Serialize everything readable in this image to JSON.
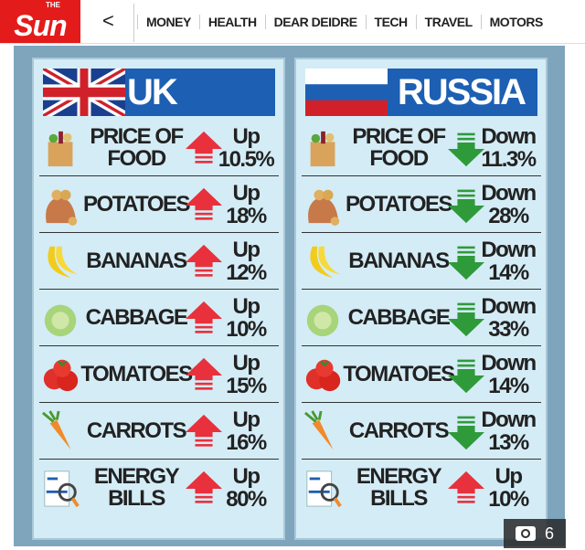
{
  "header": {
    "logo": "Sun",
    "logo_small": "THE",
    "back": "<",
    "nav": [
      "MONEY",
      "HEALTH",
      "DEAR DEIDRE",
      "TECH",
      "TRAVEL",
      "MOTORS"
    ]
  },
  "colors": {
    "up": "#e8313c",
    "down": "#2f9a3a",
    "title_bar": "#1d5fb3",
    "brand": "#e41b1b"
  },
  "panels": [
    {
      "title": "UK",
      "rows": [
        {
          "label": "PRICE OF FOOD",
          "dir": "Up",
          "value": "10.5%",
          "icon": "grocery-bag-icon"
        },
        {
          "label": "POTATOES",
          "dir": "Up",
          "value": "18%",
          "icon": "potato-sack-icon"
        },
        {
          "label": "BANANAS",
          "dir": "Up",
          "value": "12%",
          "icon": "banana-icon"
        },
        {
          "label": "CABBAGE",
          "dir": "Up",
          "value": "10%",
          "icon": "cabbage-icon"
        },
        {
          "label": "TOMATOES",
          "dir": "Up",
          "value": "15%",
          "icon": "tomato-icon"
        },
        {
          "label": "CARROTS",
          "dir": "Up",
          "value": "16%",
          "icon": "carrot-icon"
        },
        {
          "label": "ENERGY BILLS",
          "dir": "Up",
          "value": "80%",
          "icon": "bill-icon"
        }
      ]
    },
    {
      "title": "RUSSIA",
      "rows": [
        {
          "label": "PRICE OF FOOD",
          "dir": "Down",
          "value": "11.3%",
          "icon": "grocery-bag-icon"
        },
        {
          "label": "POTATOES",
          "dir": "Down",
          "value": "28%",
          "icon": "potato-sack-icon"
        },
        {
          "label": "BANANAS",
          "dir": "Down",
          "value": "14%",
          "icon": "banana-icon"
        },
        {
          "label": "CABBAGE",
          "dir": "Down",
          "value": "33%",
          "icon": "cabbage-icon"
        },
        {
          "label": "TOMATOES",
          "dir": "Down",
          "value": "14%",
          "icon": "tomato-icon"
        },
        {
          "label": "CARROTS",
          "dir": "Down",
          "value": "13%",
          "icon": "carrot-icon"
        },
        {
          "label": "ENERGY BILLS",
          "dir": "Up",
          "value": "10%",
          "icon": "bill-icon"
        }
      ]
    }
  ],
  "gallery": {
    "count": "6"
  }
}
